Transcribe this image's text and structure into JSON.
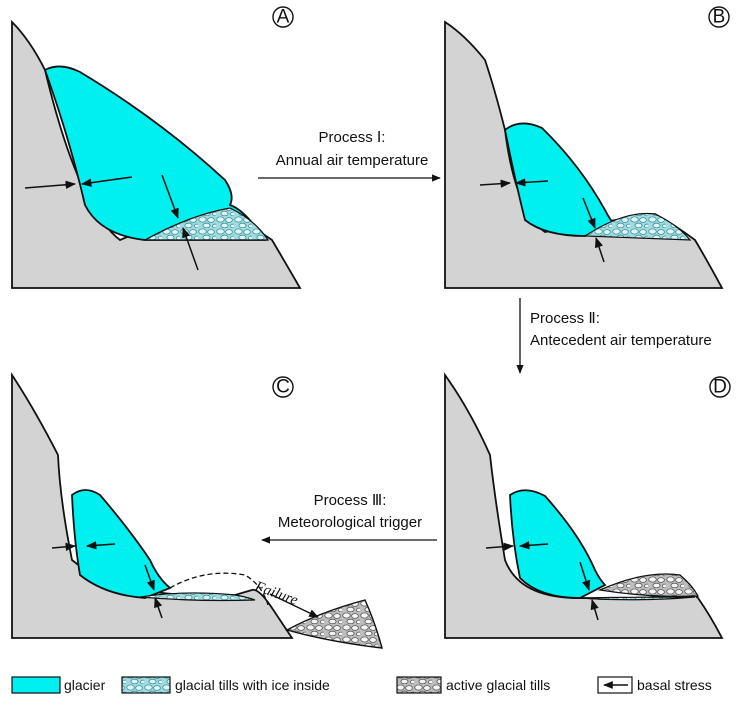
{
  "panels": [
    {
      "letter": "A"
    },
    {
      "letter": "B"
    },
    {
      "letter": "C"
    },
    {
      "letter": "D"
    }
  ],
  "processes": [
    {
      "line1": "Process Ⅰ:",
      "line2": "Annual air temperature"
    },
    {
      "line1": "Process Ⅱ:",
      "line2": "Antecedent air temperature"
    },
    {
      "line1": "Process Ⅲ:",
      "line2": "Meteorological trigger"
    }
  ],
  "failure_label": "Failure",
  "legend": [
    {
      "label": "glacier",
      "swatch": "glacier"
    },
    {
      "label": "glacial tills with ice inside",
      "swatch": "ice-tills"
    },
    {
      "label": "active glacial tills",
      "swatch": "active-tills"
    },
    {
      "label": "basal stress",
      "swatch": "stress-arrow"
    }
  ],
  "colors": {
    "glacier": "#00f0f0",
    "slope": "#d3d3d3",
    "ice_tills": "#5cc5c9",
    "active_tills": "#dcdcdc"
  }
}
